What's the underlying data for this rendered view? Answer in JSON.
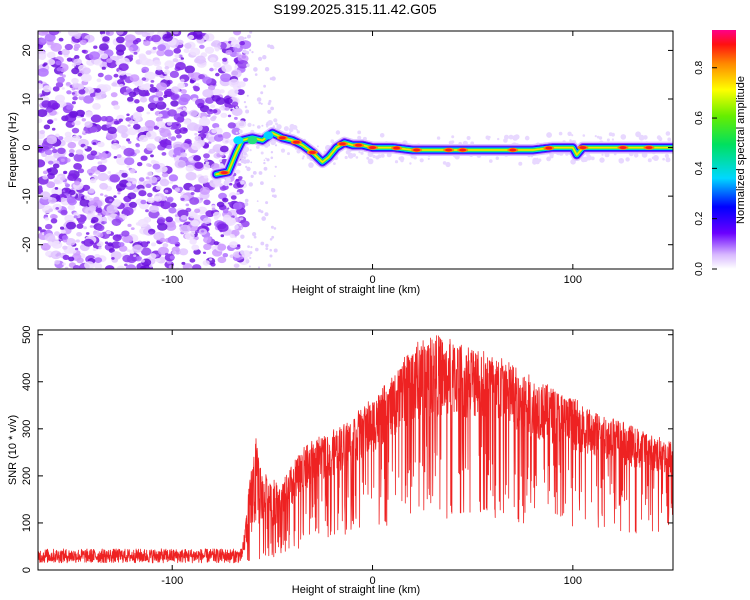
{
  "figure_title": "S199.2025.315.11.42.G05",
  "colors": {
    "axes": "#000000",
    "snr_line": "#ee2222"
  },
  "chart_data": [
    {
      "type": "heatmap",
      "title": "S199.2025.315.11.42.G05",
      "xlabel": "Height of straight line (km)",
      "ylabel": "Frequency (Hz)",
      "xlim": [
        -167,
        150
      ],
      "ylim": [
        -25,
        24
      ],
      "xticks": [
        -100,
        0,
        100
      ],
      "yticks": [
        20,
        10,
        0,
        -10,
        -20
      ],
      "grid": false,
      "colorbar": {
        "label": "Normalized spectral amplitude",
        "range": [
          0,
          0.95
        ],
        "ticks": [
          0.0,
          0.2,
          0.4,
          0.6,
          0.8
        ]
      },
      "ridge": {
        "x": [
          -78,
          -72,
          -68,
          -65,
          -60,
          -55,
          -50,
          -45,
          -40,
          -35,
          -30,
          -25,
          -22,
          -18,
          -14,
          -10,
          -5,
          0,
          10,
          20,
          30,
          40,
          50,
          60,
          70,
          80,
          90,
          100,
          102,
          105,
          110,
          120,
          130,
          140,
          150
        ],
        "y": [
          -5.5,
          -5,
          -1,
          1.5,
          2,
          1.5,
          3,
          2,
          1.5,
          0.5,
          -1,
          -3,
          -2,
          0,
          1,
          0.5,
          0.5,
          0,
          0,
          -0.5,
          -0.5,
          -0.5,
          -0.5,
          -0.5,
          -0.5,
          -0.5,
          0,
          0,
          -1.5,
          0,
          0,
          0,
          0,
          0,
          0
        ]
      },
      "noise_region_x": [
        -167,
        -68
      ]
    },
    {
      "type": "line",
      "xlabel": "Height of straight line (km)",
      "ylabel": "SNR (10 * v/v)",
      "xlim": [
        -167,
        150
      ],
      "ylim": [
        0,
        510
      ],
      "xticks": [
        -100,
        0,
        100
      ],
      "yticks": [
        0,
        100,
        200,
        300,
        400,
        500
      ],
      "grid": false,
      "series": [
        {
          "name": "SNR",
          "envelope_x": [
            -167,
            -100,
            -65,
            -60,
            -58,
            -55,
            -50,
            -45,
            -40,
            -35,
            -30,
            -20,
            -10,
            0,
            10,
            20,
            30,
            40,
            50,
            60,
            70,
            80,
            90,
            100,
            110,
            120,
            130,
            140,
            150
          ],
          "envelope_upper": [
            45,
            45,
            45,
            230,
            270,
            200,
            190,
            180,
            220,
            250,
            270,
            290,
            320,
            360,
            400,
            470,
            490,
            480,
            470,
            450,
            430,
            400,
            380,
            360,
            330,
            320,
            300,
            280,
            270
          ],
          "envelope_lower": [
            15,
            15,
            15,
            30,
            40,
            40,
            60,
            80,
            100,
            120,
            150,
            170,
            190,
            210,
            240,
            260,
            270,
            270,
            270,
            260,
            250,
            240,
            230,
            220,
            210,
            200,
            190,
            180,
            180
          ]
        }
      ]
    }
  ]
}
